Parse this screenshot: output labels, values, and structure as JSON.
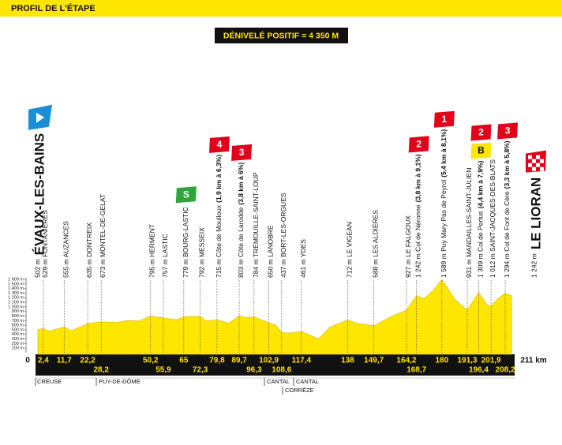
{
  "chart_data": {
    "type": "profile",
    "header": "PROFIL DE L'ÉTAPE",
    "subtitle": "DÉNIVELÉ POSITIF = 4 350 M",
    "xlim": [
      0,
      211
    ],
    "ylim": [
      0,
      1600
    ],
    "yticks": [
      {
        "value": 100,
        "label": "100 m"
      },
      {
        "value": 200,
        "label": "200 m"
      },
      {
        "value": 300,
        "label": "300 m"
      },
      {
        "value": 400,
        "label": "400 m"
      },
      {
        "value": 500,
        "label": "500 m"
      },
      {
        "value": 600,
        "label": "600 m"
      },
      {
        "value": 700,
        "label": "700 m"
      },
      {
        "value": 800,
        "label": "800 m"
      },
      {
        "value": 900,
        "label": "900 m"
      },
      {
        "value": 1000,
        "label": "1 000 m"
      },
      {
        "value": 1100,
        "label": "1 100 m"
      },
      {
        "value": 1200,
        "label": "1 200 m"
      },
      {
        "value": 1300,
        "label": "1 300 m"
      },
      {
        "value": 1400,
        "label": "1 400 m"
      },
      {
        "value": 1500,
        "label": "1 500 m"
      },
      {
        "value": 1600,
        "label": "1 600 m"
      }
    ],
    "color": "#ffe600",
    "profile": {
      "km": [
        0,
        2.4,
        5,
        8,
        11.7,
        15,
        22.2,
        28.2,
        35,
        40,
        45,
        50.2,
        55.9,
        62,
        65,
        72.3,
        75,
        79.8,
        85,
        89.7,
        93,
        96.3,
        102.9,
        106,
        108.6,
        113,
        117.4,
        125,
        130,
        138,
        142,
        149.7,
        158,
        164.2,
        168.7,
        172,
        176,
        180,
        186,
        191.3,
        196.4,
        200,
        201.9,
        205,
        208.2,
        211
      ],
      "elevation": [
        502,
        529,
        470,
        510,
        555,
        480,
        635,
        673,
        660,
        700,
        690,
        795,
        757,
        720,
        779,
        792,
        690,
        715,
        640,
        803,
        760,
        784,
        650,
        600,
        437,
        430,
        461,
        300,
        550,
        712,
        640,
        588,
        800,
        927,
        1242,
        1180,
        1350,
        1589,
        1150,
        931,
        1309,
        1050,
        1012,
        1180,
        1294,
        1242
      ]
    },
    "start": {
      "km": 0,
      "elevation": "502 m",
      "name": "ÉVAUX-LES-BAINS"
    },
    "finish": {
      "km": {
        "value": 211,
        "label": "211 km"
      },
      "elevation": "1 242 m",
      "name": "LE LIORAN"
    },
    "waypoints": [
      {
        "km": {
          "value": 2.4,
          "label": "2,4"
        },
        "name": "529 m FONTANIÈRES"
      },
      {
        "km": {
          "value": 11.7,
          "label": "11,7"
        },
        "name": "555 m AUZANCES"
      },
      {
        "km": {
          "value": 22.2,
          "label": "22,2"
        },
        "name": "635 m DONTREIX"
      },
      {
        "km": {
          "value": 28.2,
          "label": "28,2"
        },
        "name": "673 m MONTEL-DE-GELAT"
      },
      {
        "km": {
          "value": 50.2,
          "label": "50,2"
        },
        "name": "795 m HERMENT"
      },
      {
        "km": {
          "value": 55.9,
          "label": "55,9"
        },
        "name": "757 m LASTIC"
      },
      {
        "km": 65,
        "name": "779 m BOURG-LASTIC",
        "sprint": "S"
      },
      {
        "km": {
          "value": 72.3,
          "label": "72,3"
        },
        "name": "792 m MESSEIX"
      },
      {
        "km": {
          "value": 79.8,
          "label": "79,8"
        },
        "name": "715 m Côte de Moulloux",
        "detail": "(1,9 km à 6,3%)",
        "category": 4
      },
      {
        "km": {
          "value": 89.7,
          "label": "89,7"
        },
        "name": "803 m Côte de Larodde",
        "detail": "(3,8 km à 6%)",
        "category": 3
      },
      {
        "km": {
          "value": 96.3,
          "label": "96,3"
        },
        "name": "784 m TRÉMOUILLE-SAINT-LOUP"
      },
      {
        "km": {
          "value": 102.9,
          "label": "102,9"
        },
        "name": "650 m LANOBRE"
      },
      {
        "km": {
          "value": 108.6,
          "label": "108,6"
        },
        "name": "437 m BORT-LES-ORGUES"
      },
      {
        "km": {
          "value": 117.4,
          "label": "117,4"
        },
        "name": "461 m YDES"
      },
      {
        "km": 138,
        "name": "712 m LE VIGEAN"
      },
      {
        "km": {
          "value": 149.7,
          "label": "149,7"
        },
        "name": "588 m LES ALDIÈRES"
      },
      {
        "km": {
          "value": 164.2,
          "label": "164,2"
        },
        "name": "927 m LE FALGOUX"
      },
      {
        "km": {
          "value": 168.7,
          "label": "168,7"
        },
        "name": "1 242 m Col de Néronne",
        "detail": "(3,8 km à 9,1%)",
        "category": 2
      },
      {
        "km": 180,
        "name": "1 589 m Puy Mary Pas de Peyrol",
        "detail": "(5,4 km à 8,1%)",
        "category": 1
      },
      {
        "km": {
          "value": 191.3,
          "label": "191,3"
        },
        "name": "931 m MANDAILLES-SAINT-JULIEN"
      },
      {
        "km": {
          "value": 196.4,
          "label": "196,4"
        },
        "name": "1 309 m Col de Pertus",
        "detail": "(4,4 km à 7,9%)",
        "category": 2,
        "bonus": "B"
      },
      {
        "km": {
          "value": 201.9,
          "label": "201,9"
        },
        "name": "1 012 m SAINT-JACQUES-DES-BLATS"
      },
      {
        "km": {
          "value": 208.2,
          "label": "208,2"
        },
        "name": "1 294 m Col de Font de Cère",
        "detail": "(3,3 km à 5,8%)",
        "category": 3
      }
    ],
    "regions": [
      "CREUSE",
      "PUY-DE-DÔME",
      "CANTAL",
      "CANTAL",
      "CORRÈZE"
    ]
  }
}
